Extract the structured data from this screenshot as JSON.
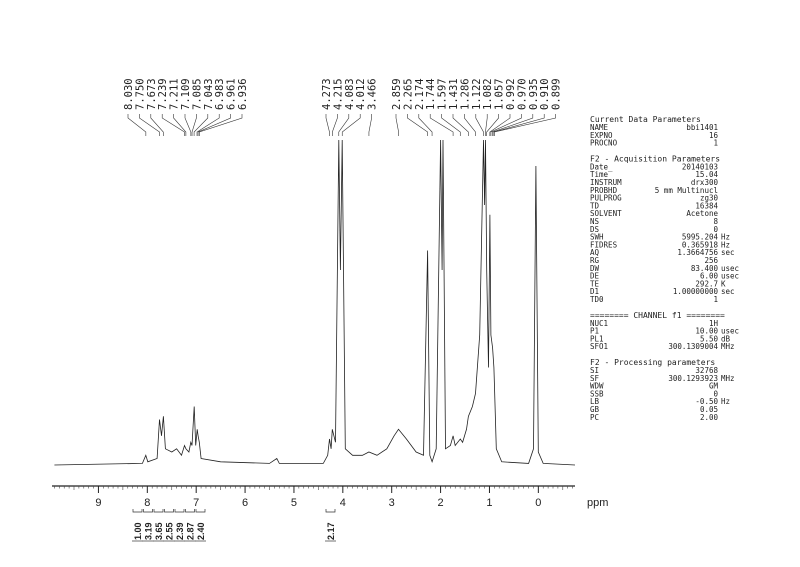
{
  "chart_data": {
    "type": "line",
    "x_label": "ppm",
    "xlim": [
      9.95,
      -0.75
    ],
    "xticks": [
      9,
      8,
      7,
      6,
      5,
      4,
      3,
      2,
      1,
      0
    ],
    "ylim": [
      0,
      100
    ],
    "color": "#222222",
    "x": [
      9.9,
      8.1,
      8.03,
      7.99,
      7.8,
      7.75,
      7.71,
      7.67,
      7.63,
      7.5,
      7.4,
      7.3,
      7.24,
      7.21,
      7.15,
      7.11,
      7.085,
      7.04,
      7.01,
      6.98,
      6.96,
      6.936,
      6.9,
      6.5,
      5.5,
      5.35,
      5.3,
      4.4,
      4.31,
      4.273,
      4.24,
      4.215,
      4.15,
      4.083,
      4.05,
      4.012,
      3.95,
      3.8,
      3.6,
      3.466,
      3.3,
      3.1,
      2.95,
      2.86,
      2.7,
      2.5,
      2.35,
      2.265,
      2.22,
      2.174,
      2.09,
      2.0,
      1.97,
      1.95,
      1.9,
      1.8,
      1.744,
      1.7,
      1.597,
      1.55,
      1.47,
      1.431,
      1.35,
      1.286,
      1.2,
      1.122,
      1.1,
      1.082,
      1.057,
      1.02,
      0.992,
      0.97,
      0.935,
      0.91,
      0.899,
      0.86,
      0.75,
      0.2,
      0.1,
      0.05,
      0.0,
      -0.1,
      -0.75
    ],
    "values": [
      0,
      0.5,
      3,
      1,
      2,
      14,
      9,
      15,
      5,
      4,
      5,
      3,
      6,
      5,
      4,
      7,
      6,
      18,
      6,
      11,
      9,
      7,
      2,
      1,
      0.5,
      2,
      0.5,
      0.5,
      3,
      8,
      5,
      11,
      7,
      100,
      60,
      100,
      5,
      3,
      3,
      4,
      3,
      5,
      9,
      11,
      8,
      4,
      3,
      66,
      3,
      1,
      5,
      100,
      60,
      100,
      5,
      6,
      9,
      6,
      8,
      7,
      11,
      15,
      18,
      22,
      40,
      100,
      80,
      100,
      60,
      30,
      77,
      40,
      36,
      30,
      25,
      5,
      1,
      0.5,
      5,
      92,
      4,
      0.5,
      0
    ],
    "peak_labels": [
      [
        "8.030",
        "7.750",
        "7.673",
        "7.239",
        "7.211",
        "7.109",
        "7.085",
        "7.043",
        "6.983",
        "6.961",
        "6.936"
      ],
      [
        "4.273",
        "4.215",
        "4.083",
        "4.012",
        "3.466"
      ],
      [
        "2.859",
        "2.265",
        "2.174",
        "1.744",
        "1.597",
        "1.431",
        "1.286",
        "1.122",
        "1.082",
        "1.057",
        "0.992",
        "0.970",
        "0.935",
        "0.910",
        "0.899"
      ]
    ],
    "integrals": [
      [
        "1.00",
        "3.19",
        "3.65",
        "2.55",
        "2.39",
        "2.87",
        "2.40"
      ],
      [
        "2.17"
      ]
    ]
  },
  "parameters": [
    {
      "title": "Current Data Parameters",
      "rows": [
        [
          "NAME",
          "bbi1401"
        ],
        [
          "EXPNO",
          "16"
        ],
        [
          "PROCNO",
          "1"
        ]
      ]
    },
    {
      "title": "F2 - Acquisition Parameters",
      "rows": [
        [
          "Date_",
          "20140103"
        ],
        [
          "Time",
          "15.04"
        ],
        [
          "INSTRUM",
          "drx300"
        ],
        [
          "PROBHD",
          "5 mm Multinucl"
        ],
        [
          "PULPROG",
          "zg30"
        ],
        [
          "TD",
          "16384"
        ],
        [
          "SOLVENT",
          "Acetone"
        ],
        [
          "NS",
          "8"
        ],
        [
          "DS",
          "0"
        ],
        [
          "SWH",
          "5995.204",
          "Hz"
        ],
        [
          "FIDRES",
          "0.365918",
          "Hz"
        ],
        [
          "AQ",
          "1.3664756",
          "sec"
        ],
        [
          "RG",
          "256"
        ],
        [
          "DW",
          "83.400",
          "usec"
        ],
        [
          "DE",
          "6.00",
          "usec"
        ],
        [
          "TE",
          "292.7",
          "K"
        ],
        [
          "D1",
          "1.00000000",
          "sec"
        ],
        [
          "TD0",
          "1"
        ]
      ]
    },
    {
      "title": "======== CHANNEL f1 ========",
      "rows": [
        [
          "NUC1",
          "1H"
        ],
        [
          "P1",
          "10.00",
          "usec"
        ],
        [
          "PL1",
          "5.50",
          "dB"
        ],
        [
          "SFO1",
          "300.1309004",
          "MHz"
        ]
      ]
    },
    {
      "title": "F2 - Processing parameters",
      "rows": [
        [
          "SI",
          "32768"
        ],
        [
          "SF",
          "300.1293923",
          "MHz"
        ],
        [
          "WDW",
          "GM"
        ],
        [
          "SSB",
          "0"
        ],
        [
          "LB",
          "-0.50",
          "Hz"
        ],
        [
          "GB",
          "0.05"
        ],
        [
          "PC",
          "2.00"
        ]
      ]
    }
  ]
}
